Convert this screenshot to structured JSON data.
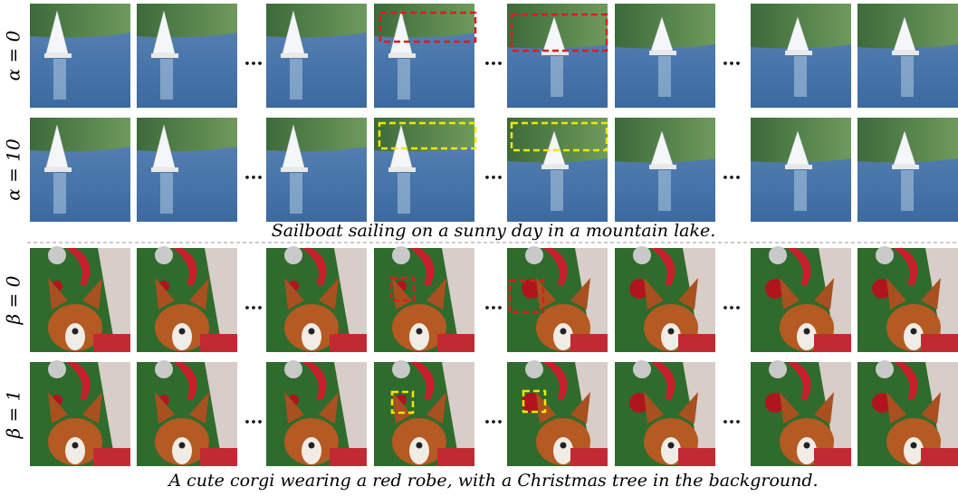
{
  "panels": [
    {
      "caption": "Sailboat sailing on a sunny day in a mountain lake.",
      "rows": [
        "α = 0",
        "α = 10"
      ]
    },
    {
      "caption": "A cute corgi wearing a red robe, with a Christmas tree in the background.",
      "rows": [
        "β = 0",
        "β = 1"
      ]
    }
  ],
  "ellipsis": "..."
}
